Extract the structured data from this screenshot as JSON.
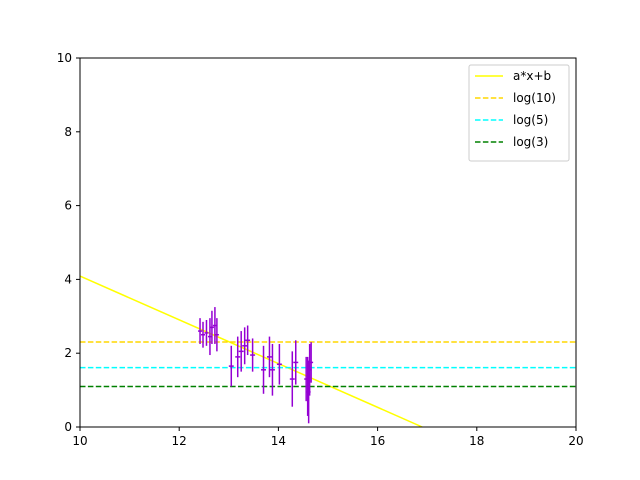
{
  "chart_data": {
    "type": "scatter",
    "title": "",
    "xlabel": "",
    "ylabel": "",
    "xlim": [
      10,
      20
    ],
    "ylim": [
      0,
      10
    ],
    "xticks": [
      10,
      12,
      14,
      16,
      18,
      20
    ],
    "yticks": [
      0,
      2,
      4,
      6,
      8,
      10
    ],
    "grid": false,
    "legend_position": "top-right",
    "points_color": "#9400d3",
    "points": [
      {
        "x": 12.42,
        "y": 2.6,
        "xerr": 0.04,
        "yerr": 0.35
      },
      {
        "x": 12.48,
        "y": 2.5,
        "xerr": 0.04,
        "yerr": 0.35
      },
      {
        "x": 12.55,
        "y": 2.55,
        "xerr": 0.04,
        "yerr": 0.35
      },
      {
        "x": 12.62,
        "y": 2.45,
        "xerr": 0.04,
        "yerr": 0.5
      },
      {
        "x": 12.66,
        "y": 2.7,
        "xerr": 0.04,
        "yerr": 0.45
      },
      {
        "x": 12.72,
        "y": 2.75,
        "xerr": 0.04,
        "yerr": 0.5
      },
      {
        "x": 12.76,
        "y": 2.5,
        "xerr": 0.04,
        "yerr": 0.45
      },
      {
        "x": 13.05,
        "y": 1.65,
        "xerr": 0.05,
        "yerr": 0.55
      },
      {
        "x": 13.18,
        "y": 1.9,
        "xerr": 0.05,
        "yerr": 0.55
      },
      {
        "x": 13.25,
        "y": 2.05,
        "xerr": 0.05,
        "yerr": 0.55
      },
      {
        "x": 13.32,
        "y": 2.2,
        "xerr": 0.05,
        "yerr": 0.5
      },
      {
        "x": 13.38,
        "y": 2.35,
        "xerr": 0.05,
        "yerr": 0.4
      },
      {
        "x": 13.48,
        "y": 1.95,
        "xerr": 0.05,
        "yerr": 0.45
      },
      {
        "x": 13.7,
        "y": 1.55,
        "xerr": 0.05,
        "yerr": 0.65
      },
      {
        "x": 13.82,
        "y": 1.9,
        "xerr": 0.05,
        "yerr": 0.55
      },
      {
        "x": 13.88,
        "y": 1.55,
        "xerr": 0.05,
        "yerr": 0.7
      },
      {
        "x": 14.02,
        "y": 1.7,
        "xerr": 0.05,
        "yerr": 0.55
      },
      {
        "x": 14.28,
        "y": 1.3,
        "xerr": 0.05,
        "yerr": 0.75
      },
      {
        "x": 14.35,
        "y": 1.75,
        "xerr": 0.05,
        "yerr": 0.6
      },
      {
        "x": 14.56,
        "y": 1.3,
        "xerr": 0.04,
        "yerr": 0.6
      },
      {
        "x": 14.59,
        "y": 1.1,
        "xerr": 0.04,
        "yerr": 0.8
      },
      {
        "x": 14.61,
        "y": 0.95,
        "xerr": 0.04,
        "yerr": 0.85
      },
      {
        "x": 14.63,
        "y": 1.55,
        "xerr": 0.04,
        "yerr": 0.7
      },
      {
        "x": 14.66,
        "y": 1.75,
        "xerr": 0.04,
        "yerr": 0.55
      }
    ],
    "lines": [
      {
        "name": "a*x+b",
        "kind": "line",
        "x": [
          10,
          16.9
        ],
        "y": [
          4.09,
          0
        ],
        "color": "#ffff00",
        "style": "solid"
      },
      {
        "name": "log(10)",
        "kind": "hline",
        "y": 2.302585,
        "color": "#ffd700",
        "style": "dashed"
      },
      {
        "name": "log(5)",
        "kind": "hline",
        "y": 1.609438,
        "color": "#00ffff",
        "style": "dashed"
      },
      {
        "name": "log(3)",
        "kind": "hline",
        "y": 1.098612,
        "color": "#008000",
        "style": "dashed"
      }
    ]
  }
}
